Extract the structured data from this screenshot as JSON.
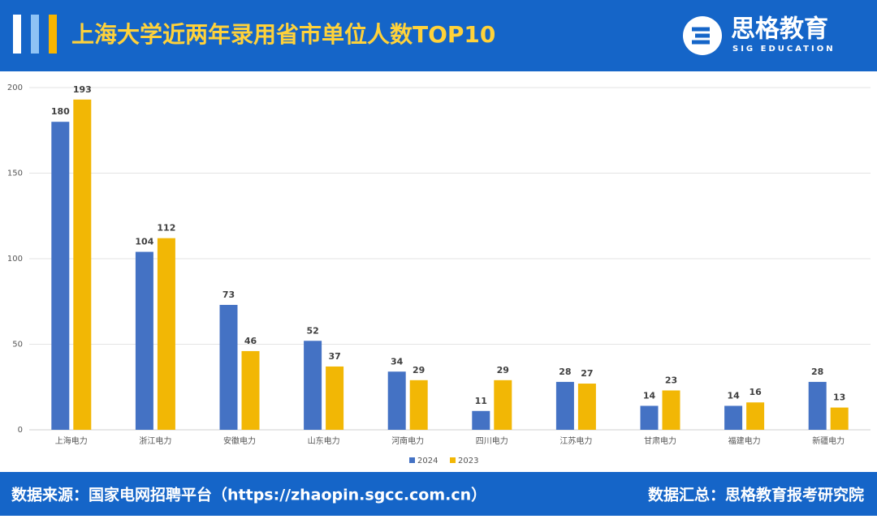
{
  "header": {
    "title": "上海大学近两年录用省市单位人数TOP10",
    "logo_name": "思格教育",
    "logo_sub": "SIG EDUCATION"
  },
  "chart_data": {
    "type": "bar",
    "categories": [
      "上海电力",
      "浙江电力",
      "安徽电力",
      "山东电力",
      "河南电力",
      "四川电力",
      "江苏电力",
      "甘肃电力",
      "福建电力",
      "新疆电力"
    ],
    "series": [
      {
        "name": "2024",
        "color": "#4472c4",
        "values": [
          180,
          104,
          73,
          52,
          34,
          11,
          28,
          14,
          14,
          28
        ]
      },
      {
        "name": "2023",
        "color": "#f2b705",
        "values": [
          193,
          112,
          46,
          37,
          29,
          29,
          27,
          23,
          16,
          13
        ]
      }
    ],
    "ylim": [
      0,
      200
    ],
    "yticks": [
      0,
      50,
      100,
      150,
      200
    ],
    "grid": true,
    "legend": "bottom"
  },
  "footer": {
    "source": "数据来源：国家电网招聘平台（https://zhaopin.sgcc.com.cn）",
    "summary": "数据汇总：思格教育报考研究院"
  }
}
